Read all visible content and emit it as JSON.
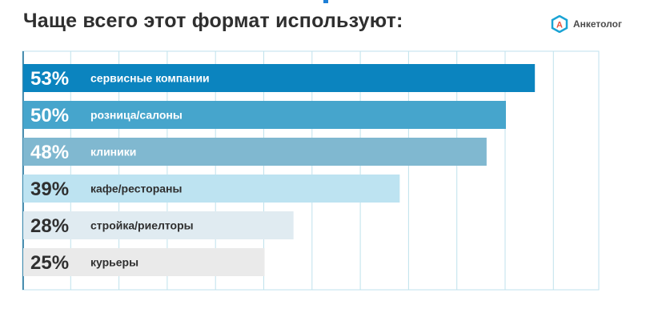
{
  "title": "Чаще всего этот формат используют:",
  "brand": {
    "name": "Анкетолог",
    "logo_letter": "A",
    "logo_icon": "ankettolog-logo-icon",
    "logo_color": "#1aa3d4",
    "logo_letter_color": "#e8513a"
  },
  "chart_data": {
    "type": "bar",
    "orientation": "horizontal",
    "xlim": [
      0,
      60
    ],
    "grid": true,
    "categories": [
      "сервисные компании",
      "розница/салоны",
      "клиники",
      "кафе/рестораны",
      "стройка/риелторы",
      "курьеры"
    ],
    "values": [
      53,
      50,
      48,
      39,
      28,
      25
    ],
    "value_labels": [
      "53%",
      "50%",
      "48%",
      "39%",
      "28%",
      "25%"
    ],
    "bar_colors": [
      "#0b84bf",
      "#46a5cc",
      "#80b8d0",
      "#bde3f1",
      "#e0ebf1",
      "#eaeaea"
    ],
    "label_colors": [
      "#ffffff",
      "#ffffff",
      "#ffffff",
      "#2f2f2f",
      "#2f2f2f",
      "#2f2f2f"
    ],
    "grid_color": "#bfe2ec"
  }
}
